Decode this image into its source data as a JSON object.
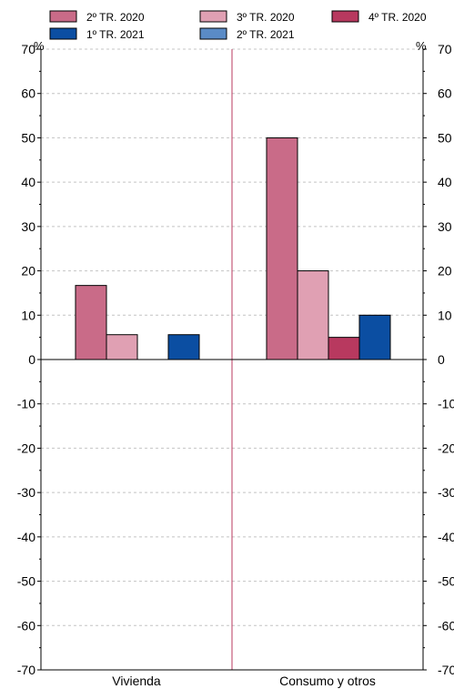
{
  "chart_data": {
    "type": "bar",
    "categories": [
      "Vivienda",
      "Consumo y otros"
    ],
    "series": [
      {
        "name": "2º TR. 2020",
        "values": [
          16.7,
          50.0
        ],
        "color": "#c96b88"
      },
      {
        "name": "3º TR. 2020",
        "values": [
          5.6,
          20.0
        ],
        "color": "#e0a0b3"
      },
      {
        "name": "4º TR. 2020",
        "values": [
          0,
          5.0
        ],
        "color": "#b8395f"
      },
      {
        "name": "1º TR. 2021",
        "values": [
          5.6,
          10.0
        ],
        "color": "#0b4ea2"
      },
      {
        "name": "2º TR. 2021",
        "values": [
          0,
          0
        ],
        "color": "#5a8bc6"
      }
    ],
    "ylim": [
      -70,
      70
    ],
    "yticks": [
      -70,
      -60,
      -50,
      -40,
      -30,
      -20,
      -10,
      0,
      10,
      20,
      30,
      40,
      50,
      60,
      70
    ],
    "y_unit_left": "%",
    "y_unit_right": "%",
    "grid": true,
    "legend_position": "top",
    "divider_color": "#b8395f"
  }
}
